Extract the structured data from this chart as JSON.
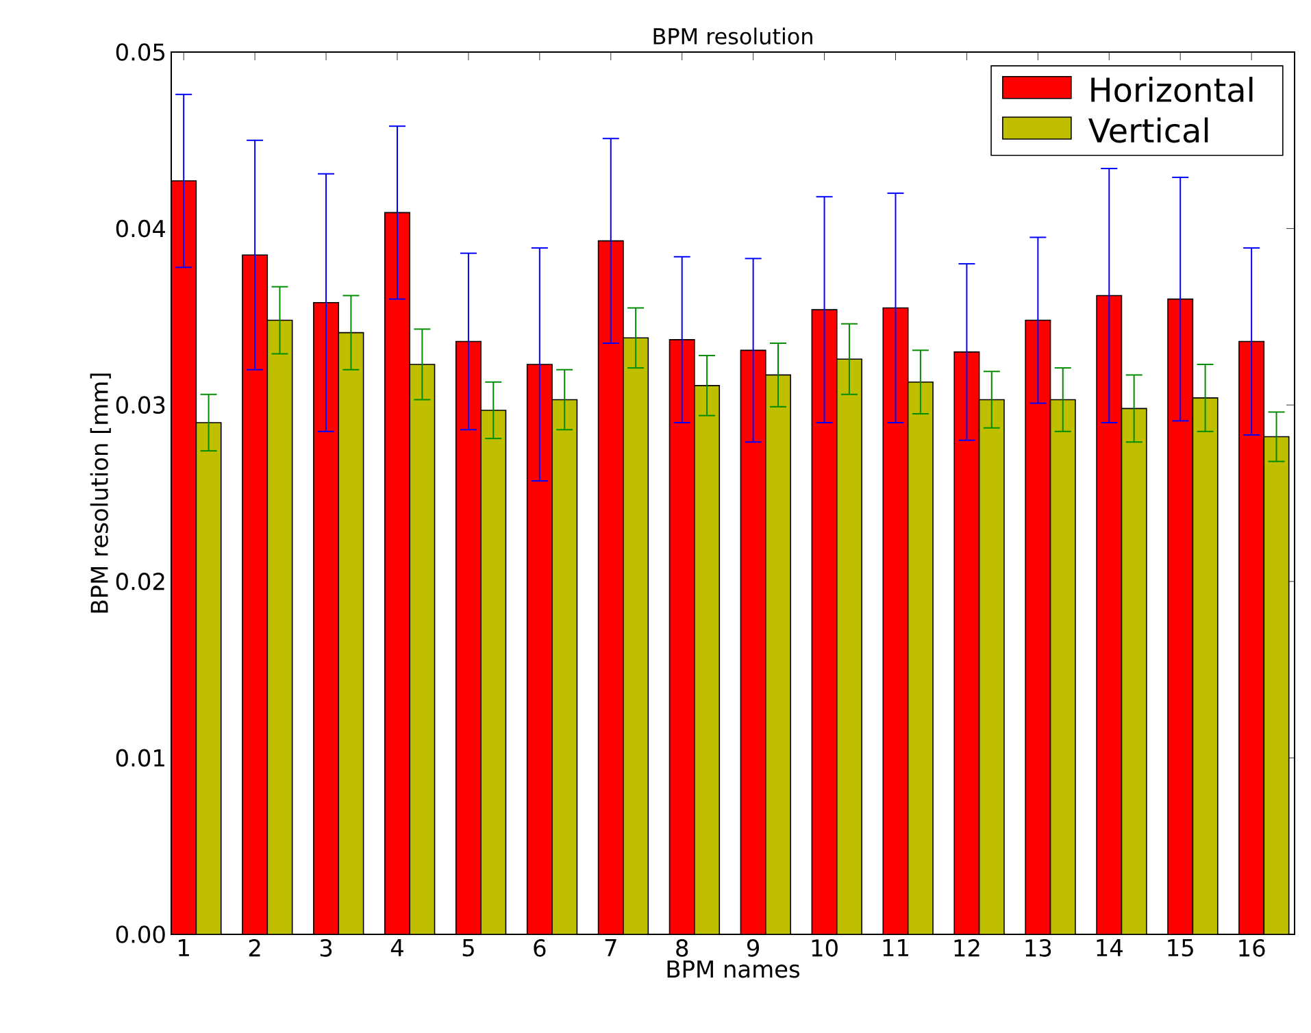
{
  "chart_data": {
    "type": "bar",
    "title": "BPM resolution",
    "xlabel": "BPM names",
    "ylabel": "BPM resolution [mm]",
    "categories": [
      "1",
      "2",
      "3",
      "4",
      "5",
      "6",
      "7",
      "8",
      "9",
      "10",
      "11",
      "12",
      "13",
      "14",
      "15",
      "16"
    ],
    "series": [
      {
        "name": "Horizontal",
        "color": "#ff0000",
        "values": [
          0.0427,
          0.0385,
          0.0358,
          0.0409,
          0.0336,
          0.0323,
          0.0393,
          0.0337,
          0.0331,
          0.0354,
          0.0355,
          0.033,
          0.0348,
          0.0362,
          0.036,
          0.0336
        ],
        "errors": [
          0.0049,
          0.0065,
          0.0073,
          0.0049,
          0.005,
          0.0066,
          0.0058,
          0.0047,
          0.0052,
          0.0064,
          0.0065,
          0.005,
          0.0047,
          0.0072,
          0.0069,
          0.0053
        ]
      },
      {
        "name": "Vertical",
        "color": "#bfbf00",
        "values": [
          0.029,
          0.0348,
          0.0341,
          0.0323,
          0.0297,
          0.0303,
          0.0338,
          0.0311,
          0.0317,
          0.0326,
          0.0313,
          0.0303,
          0.0303,
          0.0298,
          0.0304,
          0.0282
        ],
        "errors": [
          0.0016,
          0.0019,
          0.0021,
          0.002,
          0.0016,
          0.0017,
          0.0017,
          0.0017,
          0.0018,
          0.002,
          0.0018,
          0.0016,
          0.0018,
          0.0019,
          0.0019,
          0.0014
        ]
      }
    ],
    "ylim": [
      0,
      0.05
    ],
    "yticks": [
      {
        "value": 0,
        "label": "0.00"
      },
      {
        "value": 0.01,
        "label": "0.01"
      },
      {
        "value": 0.02,
        "label": "0.02"
      },
      {
        "value": 0.03,
        "label": "0.03"
      },
      {
        "value": 0.04,
        "label": "0.04"
      },
      {
        "value": 0.05,
        "label": "0.05"
      }
    ],
    "legend": "top right"
  }
}
